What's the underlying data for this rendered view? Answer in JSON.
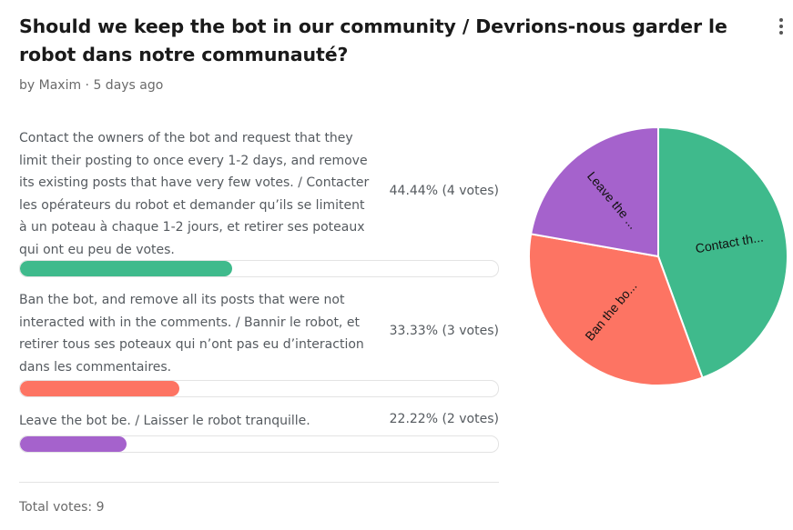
{
  "poll": {
    "title": "Should we keep the bot in our community / Devrions-nous garder le robot dans notre communauté?",
    "meta": "by Maxim · 5 days ago",
    "total_label": "Total votes:",
    "total_value": "9"
  },
  "options": [
    {
      "text": "Contact the owners of the bot and request that they limit their posting to once every 1-2 days, and remove its existing posts that have very few votes. / Contacter les opérateurs du robot et demander qu’ils se limitent à un poteau à chaque 1-2 jours, et retirer ses poteaux qui ont eu peu de votes.",
      "result": "44.44% (4 votes)",
      "votes": 4,
      "fraction": 0.4444,
      "color": "#3fba8c"
    },
    {
      "text": "Ban the bot, and remove all its posts that were not interacted with in the comments. / Bannir le robot, et retirer tous ses poteaux qui n’ont pas eu d’interaction dans les commentaires.",
      "result": "33.33% (3 votes)",
      "votes": 3,
      "fraction": 0.3333,
      "color": "#fd7463"
    },
    {
      "text": "Leave the bot be. / Laisser le robot tranquille.",
      "result": "22.22% (2 votes)",
      "votes": 2,
      "fraction": 0.2222,
      "color": "#a562cc"
    }
  ],
  "chart_data": {
    "type": "pie",
    "categories": [
      "Contact th...",
      "Ban the bo...",
      "Leave the ..."
    ],
    "values": [
      4,
      3,
      2
    ],
    "colors": [
      "#3fba8c",
      "#fd7463",
      "#a562cc"
    ]
  },
  "icons": {
    "menu": "kebab-menu-icon"
  }
}
